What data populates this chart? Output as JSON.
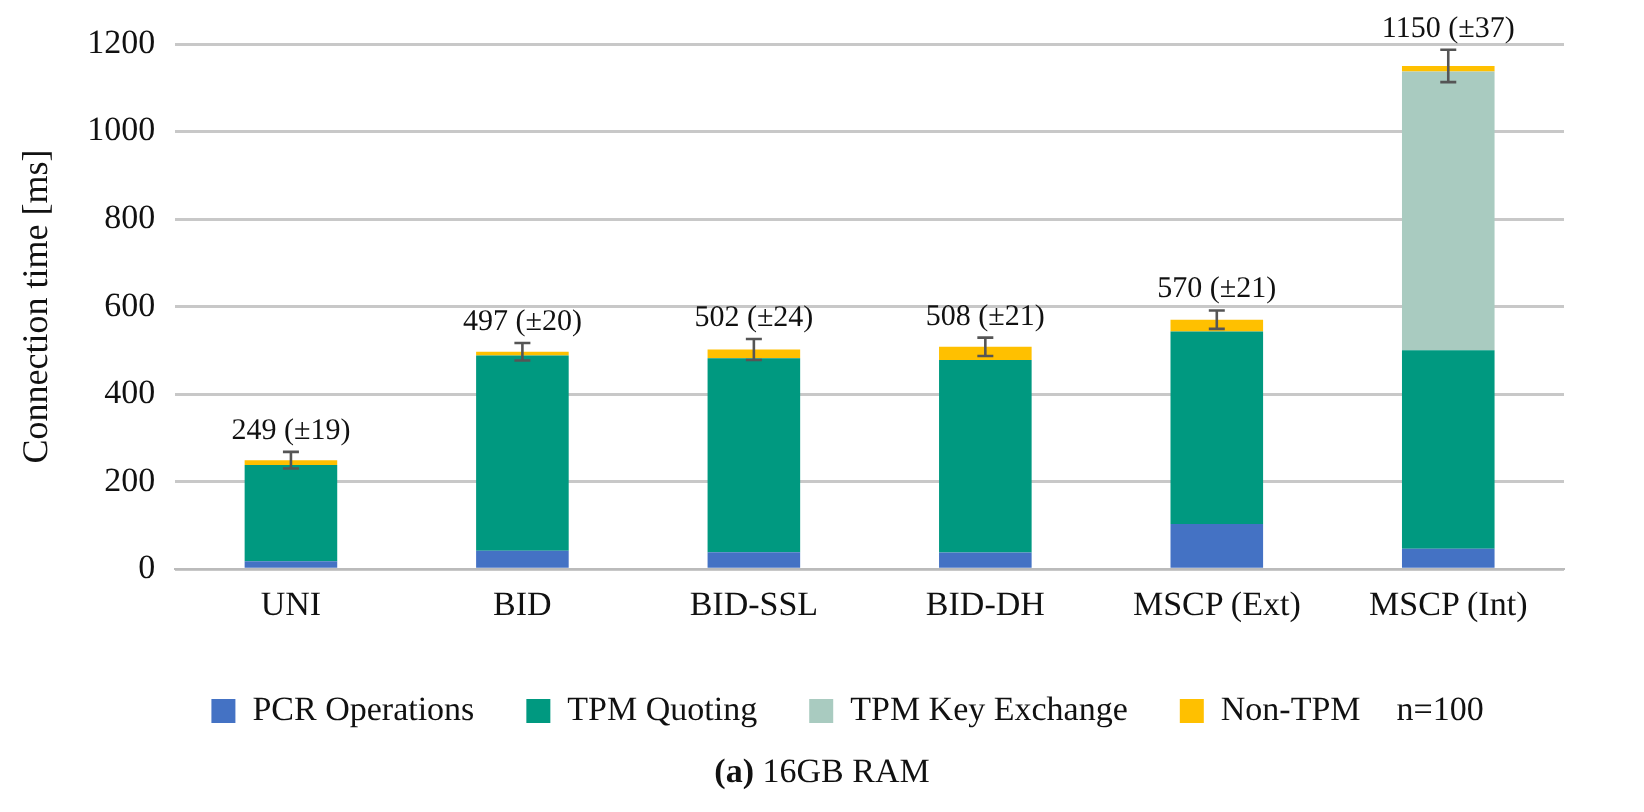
{
  "chart_data": {
    "type": "bar",
    "stacked": true,
    "ylabel": "Connection time [ms]",
    "categories": [
      "UNI",
      "BID",
      "BID-SSL",
      "BID-DH",
      "MSCP (Ext)",
      "MSCP (Int)"
    ],
    "series": [
      {
        "name": "PCR Operations",
        "color": "#4472c4",
        "values": [
          18,
          42,
          39,
          38,
          103,
          47
        ]
      },
      {
        "name": "TPM Quoting",
        "color": "#009980",
        "values": [
          220,
          446,
          443,
          440,
          440,
          453
        ]
      },
      {
        "name": "TPM Key Exchange",
        "color": "#a9cbc0",
        "values": [
          0,
          0,
          0,
          0,
          0,
          637
        ]
      },
      {
        "name": "Non-TPM",
        "color": "#ffc000",
        "values": [
          11,
          9,
          20,
          30,
          27,
          13
        ],
        "errors": [
          19,
          20,
          24,
          21,
          21,
          37
        ]
      }
    ],
    "totals": [
      "249 (±19)",
      "497 (±20)",
      "502 (±24)",
      "508 (±21)",
      "570 (±21)",
      "1150 (±37)"
    ],
    "ylim": [
      0,
      1200
    ],
    "yticks": [
      0,
      200,
      400,
      600,
      800,
      1000,
      1200
    ],
    "grid": "y",
    "legend": "bottom",
    "annotations": [
      "n=100",
      "(a) 16GB RAM"
    ]
  }
}
